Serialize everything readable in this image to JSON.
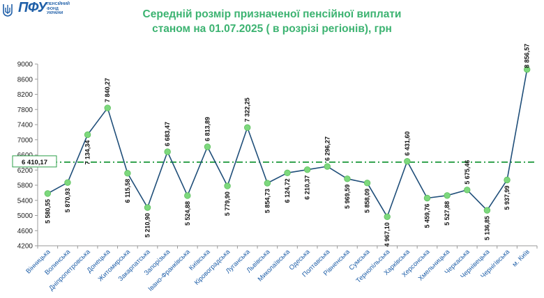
{
  "logo": {
    "text": "ПФУ",
    "subtitle": "ПЕНСІЙНИЙ ФОНД УКРАЇНИ",
    "color": "#1f5fa8"
  },
  "header": {
    "title_line1": "Середній розмір призначеної пенсійної виплати",
    "title_line2": "станом на 01.07.2025 ( в розрізі регіонів), грн"
  },
  "chart_data": {
    "type": "line",
    "categories": [
      "Вінницька",
      "Волинська",
      "Дніпропетровська",
      "Донецька",
      "Житомирська",
      "Закарпатська",
      "Запорізька",
      "Івано-Франківська",
      "Київська",
      "Кіровоградська",
      "Луганська",
      "Львівська",
      "Миколаївська",
      "Одеська",
      "Полтавська",
      "Рівненська",
      "Сумська",
      "Тернопільська",
      "Харківська",
      "Херсонська",
      "Хмельницька",
      "Черкаська",
      "Чернівецька",
      "Чернігівська",
      "м. Київ"
    ],
    "values": [
      5580.55,
      5870.93,
      7134.34,
      7840.27,
      6115.58,
      5210.9,
      6683.47,
      5524.88,
      6813.89,
      5779.9,
      7322.25,
      5854.73,
      6124.72,
      6210.37,
      6296.27,
      5969.59,
      5858.09,
      4967.1,
      6431.6,
      5459.76,
      5527.88,
      5675.46,
      5136.85,
      5937.99,
      8856.57
    ],
    "value_labels": [
      "5 580,55",
      "5 870,93",
      "7 134,34",
      "7 840,27",
      "6 115,58",
      "5 210,90",
      "6 683,47",
      "5 524,88",
      "6 813,89",
      "5 779,90",
      "7 322,25",
      "5 854,73",
      "6 124,72",
      "6 210,37",
      "6 296,27",
      "5 969,59",
      "5 858,09",
      "4 967,10",
      "6 431,60",
      "5 459,76",
      "5 527,88",
      "5 675,46",
      "5 136,85",
      "5 937,99",
      "8 856,57"
    ],
    "ylim": [
      4200,
      9000
    ],
    "yticks": [
      4200,
      4600,
      5000,
      5400,
      5800,
      6200,
      6600,
      7000,
      7400,
      7800,
      8200,
      8600,
      9000
    ],
    "average": {
      "value": 6410.17,
      "label": "6 410,17"
    },
    "grid": false,
    "colors": {
      "line": "#1f4e79",
      "marker": "#7dd87d",
      "average": "#2ea04a",
      "axis_labels": "#1f5fa8",
      "title": "#3cb371"
    }
  }
}
